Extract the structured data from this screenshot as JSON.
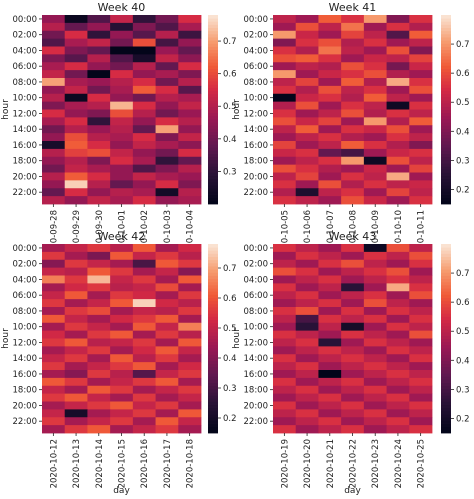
{
  "chart_data": [
    {
      "type": "heatmap",
      "title": "Week 40",
      "xlabel": "",
      "ylabel": "hour",
      "x": [
        "2020-09-28",
        "2020-09-29",
        "2020-09-30",
        "2020-10-01",
        "2020-10-02",
        "2020-10-03",
        "2020-10-04"
      ],
      "x_tick_labels": [
        "0-09-28",
        "0-09-29",
        "0-09-30",
        "2020-10-01",
        "0-10-02",
        "0-10-03",
        "0-10-04"
      ],
      "y": [
        "00:00",
        "01:00",
        "02:00",
        "03:00",
        "04:00",
        "05:00",
        "06:00",
        "07:00",
        "08:00",
        "09:00",
        "10:00",
        "11:00",
        "12:00",
        "13:00",
        "14:00",
        "15:00",
        "16:00",
        "17:00",
        "18:00",
        "19:00",
        "20:00",
        "21:00",
        "22:00",
        "23:00"
      ],
      "y_tick_labels": [
        "00:00",
        "02:00",
        "04:00",
        "06:00",
        "08:00",
        "10:00",
        "12:00",
        "14:00",
        "16:00",
        "18:00",
        "20:00",
        "22:00"
      ],
      "colorbar": {
        "range": [
          0.2,
          0.78
        ],
        "ticks": [
          "0.3",
          "0.4",
          "0.5",
          "0.6",
          "0.7"
        ]
      },
      "values": [
        [
          0.45,
          0.22,
          0.35,
          0.52,
          0.3,
          0.4,
          0.55
        ],
        [
          0.5,
          0.38,
          0.45,
          0.28,
          0.42,
          0.35,
          0.48
        ],
        [
          0.4,
          0.55,
          0.3,
          0.45,
          0.36,
          0.5,
          0.32
        ],
        [
          0.35,
          0.48,
          0.52,
          0.4,
          0.6,
          0.33,
          0.45
        ],
        [
          0.55,
          0.42,
          0.38,
          0.17,
          0.15,
          0.46,
          0.38
        ],
        [
          0.42,
          0.36,
          0.5,
          0.35,
          0.25,
          0.52,
          0.44
        ],
        [
          0.48,
          0.55,
          0.45,
          0.4,
          0.5,
          0.38,
          0.55
        ],
        [
          0.52,
          0.4,
          0.16,
          0.55,
          0.45,
          0.48,
          0.42
        ],
        [
          0.7,
          0.48,
          0.46,
          0.5,
          0.55,
          0.4,
          0.5
        ],
        [
          0.45,
          0.52,
          0.4,
          0.48,
          0.62,
          0.55,
          0.36
        ],
        [
          0.5,
          0.22,
          0.55,
          0.45,
          0.4,
          0.5,
          0.48
        ],
        [
          0.42,
          0.48,
          0.5,
          0.72,
          0.55,
          0.45,
          0.52
        ],
        [
          0.55,
          0.45,
          0.42,
          0.6,
          0.5,
          0.4,
          0.46
        ],
        [
          0.48,
          0.55,
          0.3,
          0.52,
          0.45,
          0.55,
          0.5
        ],
        [
          0.4,
          0.5,
          0.46,
          0.5,
          0.38,
          0.7,
          0.45
        ],
        [
          0.45,
          0.6,
          0.5,
          0.48,
          0.55,
          0.42,
          0.52
        ],
        [
          0.25,
          0.62,
          0.55,
          0.45,
          0.52,
          0.48,
          0.44
        ],
        [
          0.5,
          0.58,
          0.6,
          0.52,
          0.45,
          0.4,
          0.55
        ],
        [
          0.45,
          0.5,
          0.42,
          0.55,
          0.48,
          0.3,
          0.38
        ],
        [
          0.4,
          0.52,
          0.48,
          0.45,
          0.35,
          0.42,
          0.5
        ],
        [
          0.5,
          0.62,
          0.55,
          0.45,
          0.52,
          0.48,
          0.46
        ],
        [
          0.45,
          0.75,
          0.5,
          0.38,
          0.45,
          0.55,
          0.42
        ],
        [
          0.38,
          0.55,
          0.45,
          0.5,
          0.48,
          0.24,
          0.5
        ],
        [
          0.5,
          0.45,
          0.52,
          0.48,
          0.55,
          0.45,
          0.48
        ]
      ]
    },
    {
      "type": "heatmap",
      "title": "Week 41",
      "xlabel": "",
      "ylabel": "hour",
      "x": [
        "2020-10-05",
        "2020-10-06",
        "2020-10-07",
        "2020-10-08",
        "2020-10-09",
        "2020-10-10",
        "2020-10-11"
      ],
      "x_tick_labels": [
        "0-10-05",
        "0-10-06",
        "0-10-07",
        "0-10-08",
        "0-10-09",
        "0-10-10",
        "0-10-11"
      ],
      "y": [
        "00:00",
        "01:00",
        "02:00",
        "03:00",
        "04:00",
        "05:00",
        "06:00",
        "07:00",
        "08:00",
        "09:00",
        "10:00",
        "11:00",
        "12:00",
        "13:00",
        "14:00",
        "15:00",
        "16:00",
        "17:00",
        "18:00",
        "19:00",
        "20:00",
        "21:00",
        "22:00",
        "23:00"
      ],
      "y_tick_labels": [
        "00:00",
        "02:00",
        "04:00",
        "06:00",
        "08:00",
        "10:00",
        "12:00",
        "14:00",
        "16:00",
        "18:00",
        "20:00",
        "22:00"
      ],
      "colorbar": {
        "range": [
          0.15,
          0.8
        ],
        "ticks": [
          "0.2",
          "0.3",
          "0.4",
          "0.5",
          "0.6",
          "0.7"
        ]
      },
      "values": [
        [
          0.5,
          0.45,
          0.62,
          0.55,
          0.7,
          0.4,
          0.55
        ],
        [
          0.45,
          0.6,
          0.5,
          0.65,
          0.45,
          0.55,
          0.48
        ],
        [
          0.7,
          0.52,
          0.45,
          0.58,
          0.5,
          0.32,
          0.62
        ],
        [
          0.4,
          0.55,
          0.6,
          0.48,
          0.55,
          0.45,
          0.5
        ],
        [
          0.55,
          0.48,
          0.65,
          0.5,
          0.45,
          0.6,
          0.4
        ],
        [
          0.6,
          0.62,
          0.55,
          0.45,
          0.52,
          0.5,
          0.58
        ],
        [
          0.45,
          0.5,
          0.48,
          0.6,
          0.55,
          0.38,
          0.52
        ],
        [
          0.7,
          0.45,
          0.52,
          0.55,
          0.6,
          0.48,
          0.45
        ],
        [
          0.5,
          0.58,
          0.45,
          0.62,
          0.48,
          0.72,
          0.55
        ],
        [
          0.55,
          0.48,
          0.6,
          0.5,
          0.55,
          0.45,
          0.6
        ],
        [
          0.15,
          0.52,
          0.55,
          0.48,
          0.62,
          0.5,
          0.45
        ],
        [
          0.48,
          0.6,
          0.45,
          0.55,
          0.5,
          0.18,
          0.55
        ],
        [
          0.55,
          0.45,
          0.5,
          0.6,
          0.48,
          0.55,
          0.5
        ],
        [
          0.6,
          0.52,
          0.58,
          0.45,
          0.7,
          0.48,
          0.62
        ],
        [
          0.5,
          0.62,
          0.45,
          0.55,
          0.52,
          0.6,
          0.45
        ],
        [
          0.45,
          0.5,
          0.55,
          0.48,
          0.45,
          0.55,
          0.5
        ],
        [
          0.58,
          0.45,
          0.5,
          0.62,
          0.55,
          0.48,
          0.4
        ],
        [
          0.52,
          0.55,
          0.35,
          0.3,
          0.45,
          0.52,
          0.55
        ],
        [
          0.45,
          0.5,
          0.55,
          0.7,
          0.18,
          0.6,
          0.5
        ],
        [
          0.6,
          0.55,
          0.48,
          0.45,
          0.52,
          0.45,
          0.58
        ],
        [
          0.5,
          0.58,
          0.45,
          0.55,
          0.5,
          0.72,
          0.45
        ],
        [
          0.55,
          0.45,
          0.6,
          0.48,
          0.55,
          0.5,
          0.52
        ],
        [
          0.48,
          0.22,
          0.5,
          0.55,
          0.45,
          0.58,
          0.5
        ],
        [
          0.55,
          0.5,
          0.45,
          0.6,
          0.52,
          0.45,
          0.55
        ]
      ]
    },
    {
      "type": "heatmap",
      "title": "Week 42",
      "xlabel": "day",
      "ylabel": "hour",
      "x": [
        "2020-10-12",
        "2020-10-13",
        "2020-10-14",
        "2020-10-15",
        "2020-10-16",
        "2020-10-17",
        "2020-10-18"
      ],
      "x_tick_labels": [
        "2020-10-12",
        "2020-10-13",
        "2020-10-14",
        "2020-10-15",
        "2020-10-16",
        "2020-10-17",
        "2020-10-18"
      ],
      "y": [
        "00:00",
        "01:00",
        "02:00",
        "03:00",
        "04:00",
        "05:00",
        "06:00",
        "07:00",
        "08:00",
        "09:00",
        "10:00",
        "11:00",
        "12:00",
        "13:00",
        "14:00",
        "15:00",
        "16:00",
        "17:00",
        "18:00",
        "19:00",
        "20:00",
        "21:00",
        "22:00",
        "23:00"
      ],
      "y_tick_labels": [
        "00:00",
        "02:00",
        "04:00",
        "06:00",
        "08:00",
        "10:00",
        "12:00",
        "14:00",
        "16:00",
        "18:00",
        "20:00",
        "22:00"
      ],
      "colorbar": {
        "range": [
          0.15,
          0.78
        ],
        "ticks": [
          "0.2",
          "0.3",
          "0.4",
          "0.5",
          "0.6",
          "0.7"
        ]
      },
      "values": [
        [
          0.45,
          0.5,
          0.55,
          0.48,
          0.6,
          0.45,
          0.52
        ],
        [
          0.55,
          0.45,
          0.38,
          0.6,
          0.5,
          0.55,
          0.48
        ],
        [
          0.4,
          0.55,
          0.5,
          0.45,
          0.3,
          0.6,
          0.55
        ],
        [
          0.5,
          0.48,
          0.6,
          0.55,
          0.45,
          0.5,
          0.4
        ],
        [
          0.65,
          0.55,
          0.72,
          0.5,
          0.55,
          0.45,
          0.6
        ],
        [
          0.45,
          0.52,
          0.55,
          0.48,
          0.5,
          0.58,
          0.45
        ],
        [
          0.5,
          0.6,
          0.45,
          0.55,
          0.52,
          0.45,
          0.55
        ],
        [
          0.55,
          0.45,
          0.5,
          0.6,
          0.75,
          0.52,
          0.48
        ],
        [
          0.45,
          0.55,
          0.58,
          0.45,
          0.5,
          0.48,
          0.55
        ],
        [
          0.6,
          0.5,
          0.45,
          0.52,
          0.55,
          0.6,
          0.45
        ],
        [
          0.45,
          0.55,
          0.5,
          0.45,
          0.6,
          0.5,
          0.65
        ],
        [
          0.52,
          0.45,
          0.55,
          0.6,
          0.45,
          0.55,
          0.48
        ],
        [
          0.55,
          0.6,
          0.48,
          0.5,
          0.55,
          0.45,
          0.6
        ],
        [
          0.45,
          0.5,
          0.55,
          0.45,
          0.52,
          0.6,
          0.5
        ],
        [
          0.5,
          0.55,
          0.45,
          0.6,
          0.48,
          0.55,
          0.45
        ],
        [
          0.55,
          0.45,
          0.5,
          0.55,
          0.6,
          0.45,
          0.52
        ],
        [
          0.45,
          0.4,
          0.55,
          0.48,
          0.32,
          0.5,
          0.55
        ],
        [
          0.6,
          0.55,
          0.45,
          0.5,
          0.55,
          0.6,
          0.45
        ],
        [
          0.5,
          0.45,
          0.6,
          0.55,
          0.45,
          0.5,
          0.55
        ],
        [
          0.55,
          0.6,
          0.5,
          0.45,
          0.55,
          0.45,
          0.5
        ],
        [
          0.45,
          0.5,
          0.55,
          0.6,
          0.5,
          0.55,
          0.45
        ],
        [
          0.5,
          0.2,
          0.45,
          0.5,
          0.55,
          0.45,
          0.6
        ],
        [
          0.55,
          0.45,
          0.5,
          0.55,
          0.45,
          0.6,
          0.5
        ],
        [
          0.45,
          0.55,
          0.6,
          0.45,
          0.5,
          0.55,
          0.45
        ]
      ]
    },
    {
      "type": "heatmap",
      "title": "Week 43",
      "xlabel": "day",
      "ylabel": "hour",
      "x": [
        "2020-10-19",
        "2020-10-20",
        "2020-10-21",
        "2020-10-22",
        "2020-10-23",
        "2020-10-24",
        "2020-10-25"
      ],
      "x_tick_labels": [
        "2020-10-19",
        "2020-10-20",
        "2020-10-21",
        "2020-10-22",
        "2020-10-23",
        "2020-10-24",
        "2020-10-25"
      ],
      "y": [
        "00:00",
        "01:00",
        "02:00",
        "03:00",
        "04:00",
        "05:00",
        "06:00",
        "07:00",
        "08:00",
        "09:00",
        "10:00",
        "11:00",
        "12:00",
        "13:00",
        "14:00",
        "15:00",
        "16:00",
        "17:00",
        "18:00",
        "19:00",
        "20:00",
        "21:00",
        "22:00",
        "23:00"
      ],
      "y_tick_labels": [
        "00:00",
        "02:00",
        "04:00",
        "06:00",
        "08:00",
        "10:00",
        "12:00",
        "14:00",
        "16:00",
        "18:00",
        "20:00",
        "22:00"
      ],
      "colorbar": {
        "range": [
          0.15,
          0.8
        ],
        "ticks": [
          "0.2",
          "0.3",
          "0.4",
          "0.5",
          "0.6",
          "0.7"
        ]
      },
      "values": [
        [
          0.55,
          0.5,
          0.45,
          0.55,
          0.18,
          0.6,
          0.5
        ],
        [
          0.45,
          0.55,
          0.5,
          0.45,
          0.55,
          0.5,
          0.6
        ],
        [
          0.5,
          0.45,
          0.55,
          0.6,
          0.5,
          0.45,
          0.55
        ],
        [
          0.6,
          0.55,
          0.45,
          0.5,
          0.55,
          0.6,
          0.45
        ],
        [
          0.45,
          0.5,
          0.55,
          0.45,
          0.5,
          0.55,
          0.5
        ],
        [
          0.55,
          0.45,
          0.5,
          0.25,
          0.45,
          0.72,
          0.55
        ],
        [
          0.5,
          0.55,
          0.45,
          0.5,
          0.55,
          0.45,
          0.6
        ],
        [
          0.45,
          0.5,
          0.55,
          0.45,
          0.6,
          0.5,
          0.45
        ],
        [
          0.55,
          0.6,
          0.45,
          0.55,
          0.45,
          0.55,
          0.5
        ],
        [
          0.5,
          0.3,
          0.55,
          0.5,
          0.55,
          0.45,
          0.55
        ],
        [
          0.45,
          0.25,
          0.5,
          0.2,
          0.45,
          0.55,
          0.5
        ],
        [
          0.55,
          0.5,
          0.45,
          0.55,
          0.5,
          0.45,
          0.6
        ],
        [
          0.5,
          0.55,
          0.25,
          0.45,
          0.55,
          0.5,
          0.45
        ],
        [
          0.45,
          0.5,
          0.55,
          0.5,
          0.45,
          0.55,
          0.5
        ],
        [
          0.55,
          0.45,
          0.5,
          0.55,
          0.5,
          0.45,
          0.55
        ],
        [
          0.5,
          0.55,
          0.45,
          0.5,
          0.55,
          0.5,
          0.45
        ],
        [
          0.45,
          0.5,
          0.15,
          0.45,
          0.5,
          0.55,
          0.5
        ],
        [
          0.55,
          0.45,
          0.5,
          0.55,
          0.45,
          0.5,
          0.55
        ],
        [
          0.5,
          0.55,
          0.45,
          0.5,
          0.55,
          0.45,
          0.5
        ],
        [
          0.45,
          0.5,
          0.55,
          0.45,
          0.5,
          0.55,
          0.45
        ],
        [
          0.55,
          0.45,
          0.5,
          0.55,
          0.45,
          0.5,
          0.55
        ],
        [
          0.5,
          0.55,
          0.45,
          0.5,
          0.55,
          0.45,
          0.5
        ],
        [
          0.45,
          0.5,
          0.55,
          0.45,
          0.5,
          0.55,
          0.45
        ],
        [
          0.55,
          0.45,
          0.5,
          0.55,
          0.45,
          0.5,
          0.55
        ]
      ]
    }
  ]
}
